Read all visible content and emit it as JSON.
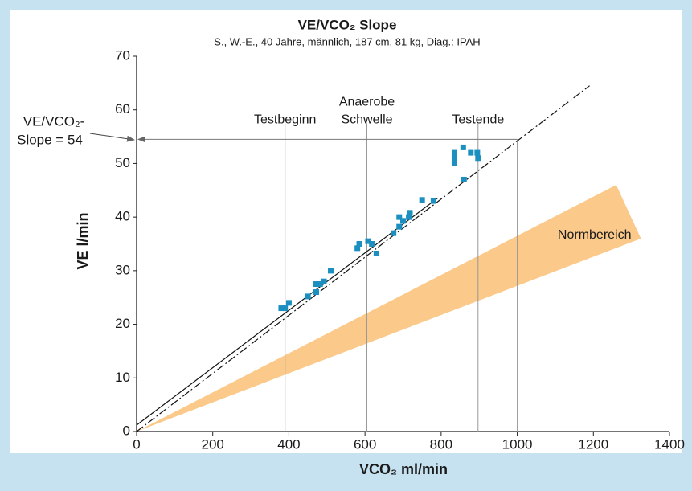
{
  "chart_data": {
    "type": "scatter",
    "title": "VE/VCO₂ Slope",
    "subtitle": "S., W.-E., 40 Jahre, männlich, 187 cm, 81 kg, Diag.: IPAH",
    "x_label": "VCO₂ ml/min",
    "y_label": "VE l/min",
    "xlim": [
      0,
      1400
    ],
    "ylim": [
      0,
      70
    ],
    "xticks": [
      0,
      200,
      400,
      600,
      800,
      1000,
      1200,
      1400
    ],
    "yticks": [
      0,
      10,
      20,
      30,
      40,
      50,
      60,
      70
    ],
    "x": [
      380,
      390,
      400,
      450,
      472,
      472,
      482,
      492,
      510,
      580,
      585,
      608,
      618,
      630,
      675,
      690,
      690,
      700,
      715,
      718,
      750,
      780,
      835,
      835,
      835,
      858,
      860,
      878,
      895,
      897
    ],
    "series": [
      {
        "color": "#1a8fc0",
        "values": [
          23,
          23,
          24,
          25.2,
          26,
          27.5,
          27.5,
          28,
          30,
          34.2,
          35,
          35.5,
          35,
          33.2,
          37,
          38.2,
          40,
          39.3,
          40,
          40.8,
          43.2,
          43,
          52,
          51,
          50,
          53,
          47,
          52,
          52,
          51
        ]
      }
    ],
    "lines": [
      {
        "style": "solid",
        "x": [
          0,
          790
        ],
        "y": [
          1.2,
          43.5
        ]
      },
      {
        "style": "dashdot",
        "x": [
          0,
          1190
        ],
        "y": [
          0,
          64.5
        ]
      }
    ],
    "markers": [
      {
        "x": 390,
        "top": 57.5,
        "label": [
          "Testbeginn"
        ]
      },
      {
        "x": 605,
        "top": 57.5,
        "label": [
          "Anaerobe",
          "Schwelle"
        ]
      },
      {
        "x": 897,
        "top": 57.5,
        "label": [
          "Testende"
        ]
      }
    ],
    "slope_marker": {
      "x": 1000,
      "y": 54.5,
      "label": [
        "VE/VCO₂-",
        "Slope = 54"
      ]
    },
    "band": {
      "label": "Normbereich",
      "color": "#fbc98a",
      "x": [
        0,
        1260,
        1325
      ],
      "y": [
        0,
        46,
        36
      ],
      "label_x": 1203,
      "label_y": 36.6
    }
  }
}
